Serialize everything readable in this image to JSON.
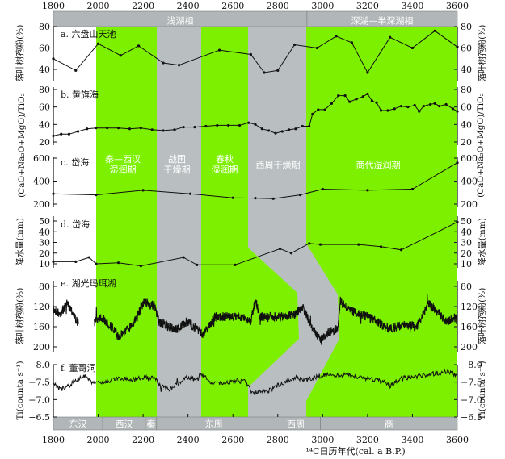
{
  "colors": {
    "wet": "#7df000",
    "dry": "#b9bfc1",
    "bar": "#b1b6b8",
    "line": "#111111"
  },
  "top_bar": [
    {
      "label": "浅湖相",
      "from": 1800,
      "to": 2930
    },
    {
      "label": "深湖—半深湖相",
      "from": 2930,
      "to": 3600
    }
  ],
  "bottom_bar": [
    {
      "label": "东汉",
      "from": 1800,
      "to": 2020
    },
    {
      "label": "西汉",
      "from": 2020,
      "to": 2210
    },
    {
      "label": "秦",
      "from": 2210,
      "to": 2260
    },
    {
      "label": "东周",
      "from": 2260,
      "to": 2770
    },
    {
      "label": "西周",
      "from": 2770,
      "to": 2990
    },
    {
      "label": "商",
      "from": 2990,
      "to": 3600
    }
  ],
  "periods": [
    {
      "line1": "秦—西汉",
      "line2": "湿润期",
      "type": "wet"
    },
    {
      "line1": "战国",
      "line2": "干燥期",
      "type": "dry"
    },
    {
      "line1": "春秋",
      "line2": "湿润期",
      "type": "wet"
    },
    {
      "line1": "西周干燥期",
      "line2": "",
      "type": "dry"
    },
    {
      "line1": "商代湿润期",
      "line2": "",
      "type": "wet"
    }
  ],
  "chart_data": {
    "type": "line",
    "x_ticks": [
      "1800",
      "2000",
      "2200",
      "2400",
      "2600",
      "2800",
      "3000",
      "3200",
      "3400",
      "3600"
    ],
    "xlim": [
      1800,
      3600
    ],
    "xlabel": "¹⁴C日历年代(cal. a B.P.)",
    "panels": [
      {
        "title": "a. 六盘山天池",
        "ylabel": "落叶树孢粉(%)",
        "ylim": [
          40,
          80
        ],
        "ticks": [
          "40",
          "60",
          "80"
        ],
        "x": [
          1800,
          1900,
          2000,
          2100,
          2180,
          2290,
          2360,
          2540,
          2680,
          2740,
          2800,
          2875,
          2975,
          3060,
          3130,
          3200,
          3300,
          3400,
          3500,
          3600
        ],
        "y": [
          50,
          39,
          64,
          53,
          62,
          46,
          44,
          58,
          54,
          37,
          39,
          63,
          60,
          71,
          65,
          37,
          70,
          60,
          76,
          61
        ]
      },
      {
        "title": "b. 黄旗海",
        "ylabel": "(CaO+Na₂O+MgO)/TiO₂",
        "ylim": [
          20,
          80
        ],
        "ticks": [
          "20",
          "40",
          "60",
          "80"
        ],
        "x": [
          1800,
          1835,
          1870,
          1910,
          1950,
          1990,
          2040,
          2090,
          2140,
          2190,
          2240,
          2290,
          2340,
          2380,
          2430,
          2480,
          2530,
          2580,
          2630,
          2670,
          2700,
          2730,
          2760,
          2790,
          2820,
          2850,
          2880,
          2910,
          2940,
          2955,
          2980,
          3010,
          3040,
          3070,
          3100,
          3120,
          3150,
          3180,
          3200,
          3220,
          3240,
          3260,
          3290,
          3320,
          3350,
          3380,
          3410,
          3430,
          3450,
          3480,
          3500,
          3520,
          3550,
          3580,
          3600
        ],
        "y": [
          27,
          29,
          29,
          32,
          35,
          36,
          36,
          36,
          35,
          36,
          34,
          33,
          34,
          37,
          37,
          38,
          39,
          39,
          39,
          42,
          40,
          35,
          33,
          30,
          32,
          34,
          35,
          38,
          38,
          52,
          57,
          57,
          64,
          73,
          73,
          66,
          69,
          72,
          75,
          67,
          65,
          56,
          56,
          58,
          61,
          60,
          62,
          55,
          61,
          63,
          64,
          61,
          63,
          58,
          55
        ]
      },
      {
        "title": "c. 岱海",
        "ylabel": "(CaO+Na₂O+MgO)/TiO₂",
        "ylim": [
          200,
          600
        ],
        "ticks": [
          "200",
          "400",
          "600"
        ],
        "x": [
          1800,
          1990,
          2200,
          2410,
          2600,
          2700,
          2780,
          2900,
          3000,
          3200,
          3400,
          3600
        ],
        "y": [
          290,
          280,
          320,
          290,
          255,
          252,
          247,
          280,
          330,
          320,
          330,
          560
        ]
      },
      {
        "title": "d. 岱海",
        "ylabel": "降水量(mm)",
        "ylim": [
          10,
          50
        ],
        "ticks": [
          "10",
          "20",
          "30",
          "40",
          "50"
        ],
        "x": [
          1800,
          1900,
          1960,
          1990,
          2090,
          2190,
          2380,
          2440,
          2610,
          2810,
          2860,
          2940,
          2990,
          3160,
          3260,
          3350,
          3600
        ],
        "y": [
          12,
          12,
          16,
          10,
          11,
          8,
          16,
          9,
          9,
          24,
          20,
          29,
          28,
          28,
          26,
          23,
          49
        ]
      },
      {
        "title": "e. 湖光玛珥湖",
        "ylabel": "落叶树孢粉(%)",
        "ylim": [
          80,
          200
        ],
        "inverted": true,
        "ticks": [
          "80",
          "120",
          "160",
          "200"
        ],
        "x": [
          1800,
          1830,
          1860,
          1880,
          1905,
          1985,
          2010,
          2060,
          2090,
          2130,
          2170,
          2200,
          2250,
          2270,
          2310,
          2350,
          2400,
          2440,
          2470,
          2520,
          2580,
          2640,
          2680,
          2700,
          2720,
          2760,
          2820,
          2880,
          2910,
          2950,
          2990,
          3030,
          3065,
          3080,
          3110,
          3160,
          3200,
          3260,
          3300,
          3360,
          3420,
          3470,
          3500,
          3550,
          3600
        ],
        "y": [
          125,
          135,
          115,
          125,
          150,
          150,
          140,
          160,
          180,
          165,
          145,
          112,
          118,
          150,
          160,
          165,
          150,
          165,
          175,
          140,
          140,
          140,
          150,
          105,
          140,
          140,
          140,
          135,
          120,
          160,
          185,
          170,
          165,
          110,
          125,
          135,
          140,
          155,
          165,
          155,
          160,
          115,
          125,
          150,
          140
        ]
      },
      {
        "title": "f. 董哥洞",
        "ylabel": "Ti(counta s⁻¹)",
        "ylim": [
          -8.0,
          -6.5
        ],
        "inverted": true,
        "ticks": [
          "−8.0",
          "−7.5",
          "−7.0",
          "−6.5"
        ],
        "x": [
          1800,
          1830,
          1860,
          1900,
          1940,
          1970,
          1990,
          2050,
          2100,
          2150,
          2200,
          2250,
          2280,
          2320,
          2360,
          2400,
          2440,
          2460,
          2500,
          2560,
          2620,
          2660,
          2690,
          2720,
          2760,
          2800,
          2850,
          2880,
          2920,
          2950,
          3000,
          3050,
          3100,
          3150,
          3200,
          3260,
          3300,
          3350,
          3400,
          3450,
          3500,
          3560,
          3600
        ],
        "y": [
          -7.45,
          -7.3,
          -7.35,
          -7.55,
          -7.7,
          -7.5,
          -7.45,
          -7.55,
          -7.6,
          -7.55,
          -7.65,
          -7.6,
          -7.4,
          -7.3,
          -7.45,
          -7.65,
          -7.55,
          -7.75,
          -7.5,
          -7.45,
          -7.55,
          -7.5,
          -7.15,
          -7.2,
          -7.25,
          -7.4,
          -7.55,
          -7.65,
          -7.55,
          -7.6,
          -7.7,
          -7.7,
          -7.7,
          -7.65,
          -7.6,
          -7.55,
          -7.4,
          -7.6,
          -7.65,
          -7.7,
          -7.75,
          -7.8,
          -7.7
        ]
      }
    ]
  }
}
